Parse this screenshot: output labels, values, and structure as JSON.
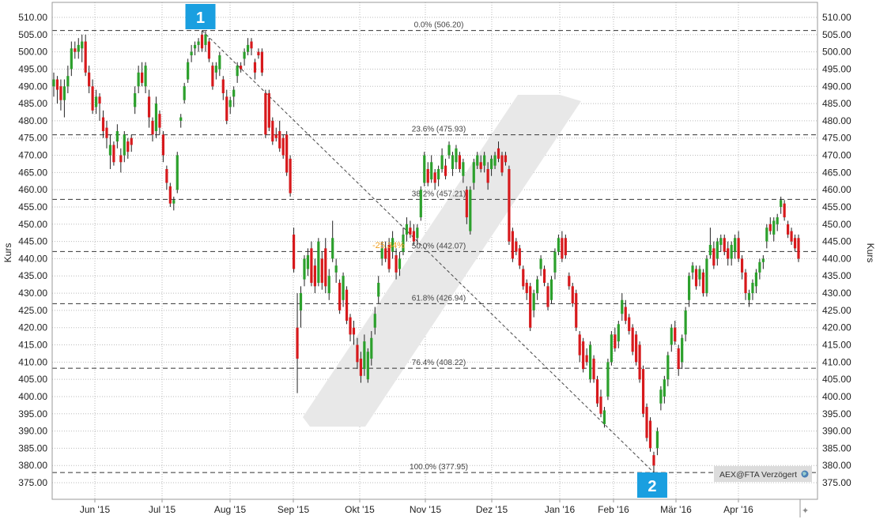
{
  "chart_data": {
    "type": "candlestick",
    "title": "",
    "ylabel_left": "Kurs",
    "ylabel_right": "Kurs",
    "ylim": [
      372,
      513
    ],
    "y_ticks": [
      "510.00",
      "505.00",
      "500.00",
      "495.00",
      "490.00",
      "485.00",
      "480.00",
      "475.00",
      "470.00",
      "465.00",
      "460.00",
      "455.00",
      "450.00",
      "445.00",
      "440.00",
      "435.00",
      "430.00",
      "425.00",
      "420.00",
      "415.00",
      "410.00",
      "405.00",
      "400.00",
      "395.00",
      "390.00",
      "385.00",
      "380.00",
      "375.00"
    ],
    "x_ticks": [
      "Jun '15",
      "Jul '15",
      "Aug '15",
      "Sep '15",
      "Okt '15",
      "Nov '15",
      "Dez '15",
      "Jan '16",
      "Feb '16",
      "Mär '16",
      "Apr '16"
    ],
    "grid": true,
    "colors": {
      "up": "#2ca02c",
      "down": "#d7191c",
      "marker": "#1a9fe0",
      "change_label": "#f0a020"
    },
    "fibonacci": [
      {
        "label": "0.0% (506.20)",
        "value": 506.2
      },
      {
        "label": "23.6% (475.93)",
        "value": 475.93
      },
      {
        "label": "38.2% (457.21)",
        "value": 457.21
      },
      {
        "label": "50.0% (442.07)",
        "value": 442.07
      },
      {
        "label": "61.8% (426.94)",
        "value": 426.94
      },
      {
        "label": "76.4% (408.22)",
        "value": 408.22
      },
      {
        "label": "100.0% (377.95)",
        "value": 377.95
      }
    ],
    "change_label": "-25.34%",
    "markers": [
      {
        "label": "1",
        "value": 506.2
      },
      {
        "label": "2",
        "value": 377.95
      }
    ],
    "ohlc": [
      [
        490,
        494,
        487,
        492
      ],
      [
        492,
        493,
        485,
        489
      ],
      [
        490,
        492,
        483,
        486
      ],
      [
        486,
        492,
        481,
        490
      ],
      [
        490,
        496,
        488,
        493
      ],
      [
        495,
        503,
        493,
        501
      ],
      [
        501,
        503,
        498,
        500
      ],
      [
        500,
        504,
        498,
        502
      ],
      [
        501,
        505,
        497,
        503
      ],
      [
        503,
        505,
        493,
        494
      ],
      [
        494,
        496,
        488,
        490
      ],
      [
        490,
        492,
        482,
        483
      ],
      [
        484,
        489,
        482,
        487
      ],
      [
        487,
        488,
        480,
        485
      ],
      [
        481,
        483,
        475,
        477
      ],
      [
        478,
        480,
        472,
        475
      ],
      [
        470,
        476,
        466,
        473
      ],
      [
        473,
        474,
        467,
        468
      ],
      [
        474,
        479,
        472,
        477
      ],
      [
        470,
        472,
        465,
        468
      ],
      [
        470,
        477,
        468,
        476
      ],
      [
        474,
        475,
        469,
        471
      ],
      [
        475,
        476,
        471,
        473
      ],
      [
        484,
        490,
        482,
        488
      ],
      [
        490,
        496,
        488,
        494
      ],
      [
        494,
        497,
        490,
        491
      ],
      [
        490,
        497,
        488,
        496
      ],
      [
        487,
        489,
        478,
        481
      ],
      [
        480,
        481,
        474,
        476
      ],
      [
        477,
        487,
        475,
        485
      ],
      [
        482,
        483,
        476,
        478
      ],
      [
        476,
        477,
        468,
        470
      ],
      [
        466,
        467,
        460,
        462
      ],
      [
        461,
        462,
        455,
        456
      ],
      [
        456,
        458,
        454,
        457
      ],
      [
        460,
        471,
        459,
        470
      ],
      [
        480,
        482,
        478,
        481
      ],
      [
        486,
        491,
        485,
        490
      ],
      [
        492,
        498,
        491,
        497
      ],
      [
        499,
        502,
        497,
        500
      ],
      [
        501,
        503,
        499,
        502
      ],
      [
        502,
        504,
        500,
        503
      ],
      [
        505,
        506.2,
        500,
        501
      ],
      [
        502,
        506,
        500,
        505
      ],
      [
        503,
        504,
        497,
        498
      ],
      [
        496,
        497,
        489,
        490
      ],
      [
        494,
        497,
        492,
        496
      ],
      [
        495,
        500,
        493,
        499
      ],
      [
        492,
        493,
        486,
        488
      ],
      [
        487,
        489,
        479,
        480
      ],
      [
        484,
        487,
        482,
        486
      ],
      [
        487,
        490,
        484,
        489
      ],
      [
        493,
        497,
        491,
        496
      ],
      [
        496,
        497,
        494,
        495
      ],
      [
        498,
        501,
        496,
        500
      ],
      [
        500,
        504,
        499,
        502
      ],
      [
        503,
        504,
        499,
        501
      ],
      [
        497,
        498,
        492,
        494
      ],
      [
        500,
        501,
        498,
        499
      ],
      [
        500,
        501,
        493,
        494
      ],
      [
        488,
        489,
        475,
        476
      ],
      [
        488,
        489,
        477,
        478
      ],
      [
        480,
        481,
        473,
        474
      ],
      [
        476,
        478,
        474,
        475
      ],
      [
        477,
        480,
        471,
        472
      ],
      [
        475,
        476,
        469,
        470
      ],
      [
        476,
        477,
        464,
        465
      ],
      [
        469,
        470,
        458,
        459
      ],
      [
        447,
        449,
        436,
        437
      ],
      [
        420,
        430,
        401,
        411
      ],
      [
        425,
        432,
        420,
        430
      ],
      [
        434,
        441,
        432,
        440
      ],
      [
        437,
        443,
        435,
        441
      ],
      [
        443,
        445,
        432,
        433
      ],
      [
        438,
        440,
        430,
        432
      ],
      [
        433,
        446,
        432,
        445
      ],
      [
        440,
        442,
        431,
        433
      ],
      [
        443,
        446,
        430,
        432
      ],
      [
        430,
        437,
        428,
        435
      ],
      [
        440,
        451,
        439,
        446
      ],
      [
        436,
        440,
        433,
        438
      ],
      [
        433,
        434,
        424,
        425
      ],
      [
        428,
        436,
        426,
        435
      ],
      [
        431,
        432,
        421,
        422
      ],
      [
        423,
        424,
        416,
        418
      ],
      [
        420,
        422,
        415,
        418
      ],
      [
        415,
        417,
        408,
        410
      ],
      [
        411,
        413,
        404,
        406
      ],
      [
        408,
        418,
        406,
        416
      ],
      [
        405,
        414,
        404,
        413
      ],
      [
        411,
        419,
        409,
        417
      ],
      [
        420,
        426,
        418,
        424
      ],
      [
        429,
        435,
        427,
        433
      ],
      [
        440,
        445,
        438,
        443
      ],
      [
        443,
        445,
        439,
        440
      ],
      [
        444,
        446,
        436,
        437
      ],
      [
        442,
        448,
        440,
        446
      ],
      [
        441,
        443,
        434,
        436
      ],
      [
        437,
        442,
        435,
        440
      ],
      [
        442,
        449,
        441,
        447
      ],
      [
        447,
        452,
        445,
        450
      ],
      [
        449,
        451,
        446,
        447
      ],
      [
        448,
        450,
        444,
        445
      ],
      [
        446,
        450,
        444,
        449
      ],
      [
        452,
        461,
        451,
        460
      ],
      [
        462,
        471,
        461,
        470
      ],
      [
        466,
        468,
        461,
        462
      ],
      [
        463,
        470,
        462,
        468
      ],
      [
        465,
        466,
        460,
        462
      ],
      [
        463,
        467,
        461,
        466
      ],
      [
        466,
        472,
        465,
        470
      ],
      [
        467,
        469,
        463,
        464
      ],
      [
        470,
        474,
        469,
        473
      ],
      [
        466,
        471,
        464,
        470
      ],
      [
        468,
        473,
        466,
        472
      ],
      [
        470,
        471,
        465,
        466
      ],
      [
        464,
        469,
        462,
        468
      ],
      [
        460,
        461,
        450,
        452
      ],
      [
        448,
        461,
        447,
        460
      ],
      [
        462,
        469,
        460,
        468
      ],
      [
        467,
        471,
        466,
        470
      ],
      [
        468,
        470,
        465,
        466
      ],
      [
        467,
        471,
        465,
        470
      ],
      [
        466,
        468,
        460,
        462
      ],
      [
        466,
        470,
        464,
        469
      ],
      [
        467,
        471,
        466,
        470
      ],
      [
        472,
        474,
        468,
        469
      ],
      [
        470,
        471,
        464,
        465
      ],
      [
        470,
        471,
        467,
        468
      ],
      [
        466,
        467,
        444,
        445
      ],
      [
        448,
        449,
        439,
        440
      ],
      [
        445,
        446,
        441,
        442
      ],
      [
        443,
        444,
        437,
        438
      ],
      [
        437,
        438,
        431,
        432
      ],
      [
        433,
        434,
        428,
        430
      ],
      [
        432,
        433,
        419,
        420
      ],
      [
        425,
        431,
        423,
        430
      ],
      [
        430,
        435,
        428,
        434
      ],
      [
        437,
        441,
        435,
        440
      ],
      [
        437,
        438,
        432,
        433
      ],
      [
        432,
        433,
        425,
        426
      ],
      [
        428,
        435,
        427,
        434
      ],
      [
        436,
        443,
        434,
        442
      ],
      [
        442,
        447,
        441,
        446
      ],
      [
        446,
        448,
        439,
        440
      ],
      [
        446,
        447,
        440,
        441
      ],
      [
        435,
        436,
        431,
        432
      ],
      [
        432,
        433,
        426,
        427
      ],
      [
        430,
        431,
        419,
        420
      ],
      [
        418,
        419,
        410,
        412
      ],
      [
        416,
        417,
        407,
        408
      ],
      [
        412,
        414,
        409,
        410
      ],
      [
        405,
        416,
        404,
        415
      ],
      [
        411,
        412,
        404,
        405
      ],
      [
        405,
        406,
        397,
        398
      ],
      [
        400,
        402,
        394,
        395
      ],
      [
        392,
        397,
        391,
        396
      ],
      [
        400,
        411,
        399,
        410
      ],
      [
        410,
        419,
        409,
        418
      ],
      [
        418,
        420,
        413,
        414
      ],
      [
        416,
        422,
        414,
        421
      ],
      [
        424,
        430,
        422,
        428
      ],
      [
        426,
        428,
        421,
        422
      ],
      [
        423,
        424,
        418,
        419
      ],
      [
        420,
        421,
        412,
        413
      ],
      [
        418,
        419,
        409,
        410
      ],
      [
        415,
        416,
        404,
        405
      ],
      [
        408,
        409,
        394,
        395
      ],
      [
        397,
        398,
        387,
        388
      ],
      [
        393,
        394,
        384,
        385
      ],
      [
        383,
        384,
        377.95,
        380
      ],
      [
        385,
        391,
        383,
        390
      ],
      [
        398,
        403,
        396,
        402
      ],
      [
        400,
        406,
        398,
        405
      ],
      [
        405,
        413,
        403,
        412
      ],
      [
        415,
        421,
        413,
        420
      ],
      [
        420,
        422,
        415,
        416
      ],
      [
        414,
        415,
        406,
        408
      ],
      [
        410,
        418,
        408,
        417
      ],
      [
        418,
        426,
        416,
        425
      ],
      [
        428,
        436,
        426,
        435
      ],
      [
        436,
        439,
        434,
        438
      ],
      [
        437,
        438,
        431,
        432
      ],
      [
        434,
        438,
        432,
        437
      ],
      [
        436,
        437,
        429,
        430
      ],
      [
        430,
        441,
        429,
        440
      ],
      [
        441,
        449,
        440,
        444
      ],
      [
        443,
        445,
        437,
        438
      ],
      [
        440,
        446,
        438,
        445
      ],
      [
        444,
        447,
        442,
        446
      ],
      [
        446,
        447,
        441,
        442
      ],
      [
        443,
        445,
        438,
        440
      ],
      [
        440,
        445,
        438,
        444
      ],
      [
        442,
        447,
        440,
        446
      ],
      [
        446,
        448,
        439,
        440
      ],
      [
        440,
        441,
        434,
        436
      ],
      [
        436,
        437,
        428,
        430
      ],
      [
        428,
        431,
        426,
        430
      ],
      [
        430,
        434,
        428,
        433
      ],
      [
        432,
        437,
        430,
        436
      ],
      [
        436,
        440,
        434,
        439
      ],
      [
        439,
        441,
        437,
        440
      ],
      [
        445,
        450,
        443,
        449
      ],
      [
        450,
        452,
        447,
        448
      ],
      [
        447,
        452,
        445,
        451
      ],
      [
        450,
        453,
        448,
        452
      ],
      [
        455,
        458,
        453,
        457
      ],
      [
        456,
        457,
        451,
        452
      ],
      [
        450,
        451,
        446,
        447
      ],
      [
        448,
        449,
        444,
        445
      ],
      [
        446,
        447,
        442,
        443
      ],
      [
        446,
        447,
        439,
        440
      ]
    ]
  },
  "source_badge": {
    "label": "AEX@FTA Verzögert",
    "icon": "globe-icon"
  },
  "footer": {
    "icon": "crosshair-icon"
  }
}
